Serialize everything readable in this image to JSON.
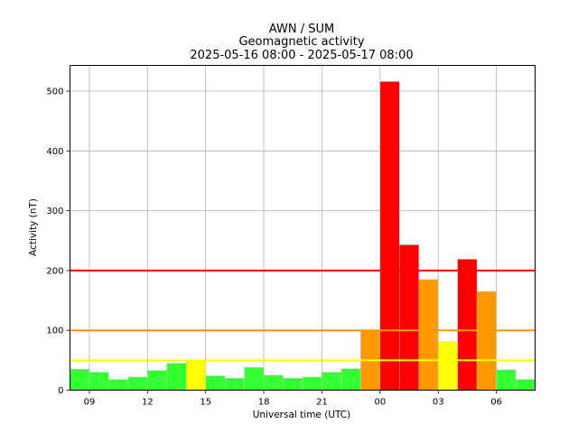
{
  "chart_data": {
    "type": "bar",
    "title_lines": [
      "AWN / SUM",
      "Geomagnetic activity",
      "2025-05-16 08:00 - 2025-05-17 08:00"
    ],
    "xlabel": "Universal time (UTC)",
    "ylabel": "Activity (nT)",
    "xlim": [
      0,
      24
    ],
    "ylim": [
      0,
      543
    ],
    "grid": true,
    "x_ticks": [
      {
        "pos": 1,
        "label": "09"
      },
      {
        "pos": 4,
        "label": "12"
      },
      {
        "pos": 7,
        "label": "15"
      },
      {
        "pos": 10,
        "label": "18"
      },
      {
        "pos": 13,
        "label": "21"
      },
      {
        "pos": 16,
        "label": "00"
      },
      {
        "pos": 19,
        "label": "03"
      },
      {
        "pos": 22,
        "label": "06"
      }
    ],
    "y_ticks": [
      0,
      100,
      200,
      300,
      400,
      500
    ],
    "bars": [
      {
        "hour": "08",
        "value": 35,
        "color": "#33ff33"
      },
      {
        "hour": "09",
        "value": 30,
        "color": "#33ff33"
      },
      {
        "hour": "10",
        "value": 18,
        "color": "#33ff33"
      },
      {
        "hour": "11",
        "value": 22,
        "color": "#33ff33"
      },
      {
        "hour": "12",
        "value": 33,
        "color": "#33ff33"
      },
      {
        "hour": "13",
        "value": 45,
        "color": "#33ff33"
      },
      {
        "hour": "14",
        "value": 50,
        "color": "#ffff00"
      },
      {
        "hour": "15",
        "value": 24,
        "color": "#33ff33"
      },
      {
        "hour": "16",
        "value": 20,
        "color": "#33ff33"
      },
      {
        "hour": "17",
        "value": 38,
        "color": "#33ff33"
      },
      {
        "hour": "18",
        "value": 25,
        "color": "#33ff33"
      },
      {
        "hour": "19",
        "value": 20,
        "color": "#33ff33"
      },
      {
        "hour": "20",
        "value": 22,
        "color": "#33ff33"
      },
      {
        "hour": "21",
        "value": 30,
        "color": "#33ff33"
      },
      {
        "hour": "22",
        "value": 36,
        "color": "#33ff33"
      },
      {
        "hour": "23",
        "value": 100,
        "color": "#ff9900"
      },
      {
        "hour": "00",
        "value": 516,
        "color": "#ff0000"
      },
      {
        "hour": "01",
        "value": 243,
        "color": "#ff0000"
      },
      {
        "hour": "02",
        "value": 185,
        "color": "#ff9900"
      },
      {
        "hour": "03",
        "value": 81,
        "color": "#ffff00"
      },
      {
        "hour": "04",
        "value": 219,
        "color": "#ff0000"
      },
      {
        "hour": "05",
        "value": 165,
        "color": "#ff9900"
      },
      {
        "hour": "06",
        "value": 34,
        "color": "#33ff33"
      },
      {
        "hour": "07",
        "value": 18,
        "color": "#33ff33"
      }
    ],
    "threshold_lines": [
      {
        "value": 50,
        "color": "#ffff00"
      },
      {
        "value": 100,
        "color": "#ff9900"
      },
      {
        "value": 200,
        "color": "#ff0000"
      }
    ]
  }
}
